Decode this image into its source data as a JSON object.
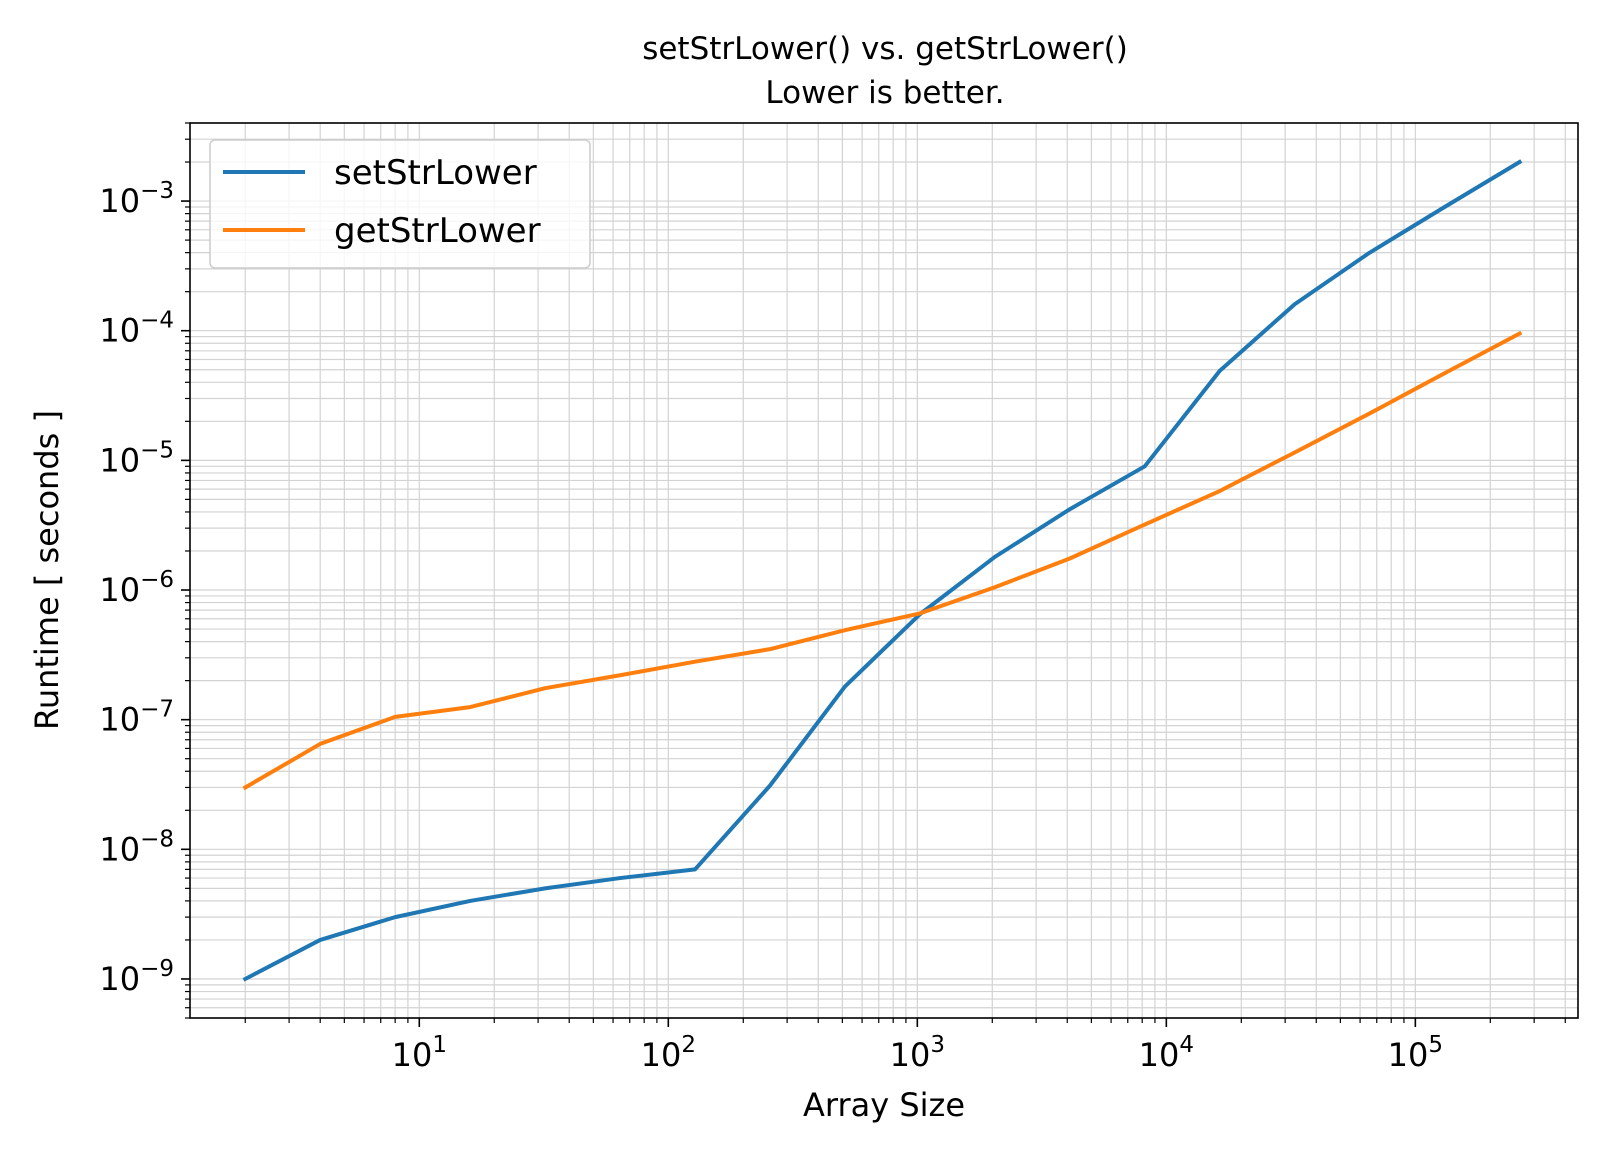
{
  "chart_data": {
    "type": "line",
    "title": "setStrLower() vs. getStrLower()",
    "subtitle": "Lower is better.",
    "xlabel": "Array Size",
    "ylabel": "Runtime [ seconds ]",
    "x_scale": "log",
    "y_scale": "log",
    "xlim": [
      1.2,
      450000
    ],
    "ylim": [
      5e-10,
      0.004
    ],
    "grid": true,
    "legend_position": "top-left",
    "x_ticks": [
      {
        "value": 10,
        "base": "10",
        "exp": "1"
      },
      {
        "value": 100,
        "base": "10",
        "exp": "2"
      },
      {
        "value": 1000,
        "base": "10",
        "exp": "3"
      },
      {
        "value": 10000,
        "base": "10",
        "exp": "4"
      },
      {
        "value": 100000,
        "base": "10",
        "exp": "5"
      }
    ],
    "y_ticks": [
      {
        "value": 1e-09,
        "base": "10",
        "exp": "−9"
      },
      {
        "value": 1e-08,
        "base": "10",
        "exp": "−8"
      },
      {
        "value": 1e-07,
        "base": "10",
        "exp": "−7"
      },
      {
        "value": 1e-06,
        "base": "10",
        "exp": "−6"
      },
      {
        "value": 1e-05,
        "base": "10",
        "exp": "−5"
      },
      {
        "value": 0.0001,
        "base": "10",
        "exp": "−4"
      },
      {
        "value": 0.001,
        "base": "10",
        "exp": "−3"
      }
    ],
    "x": [
      2,
      4,
      8,
      16,
      32,
      64,
      128,
      256,
      512,
      1024,
      2048,
      4096,
      8192,
      16384,
      32768,
      65536,
      131072,
      262144
    ],
    "series": [
      {
        "name": "setStrLower",
        "color": "#1f77b4",
        "values": [
          1e-09,
          2e-09,
          3e-09,
          4e-09,
          5e-09,
          6e-09,
          7e-09,
          3.1e-08,
          1.8e-07,
          6.5e-07,
          1.8e-06,
          4.2e-06,
          9e-06,
          4.9e-05,
          0.00016,
          0.0004,
          0.0009,
          0.002
        ]
      },
      {
        "name": "getStrLower",
        "color": "#ff7f0e",
        "values": [
          3e-08,
          6.5e-08,
          1.05e-07,
          1.25e-07,
          1.75e-07,
          2.2e-07,
          2.8e-07,
          3.5e-07,
          4.9e-07,
          6.6e-07,
          1.05e-06,
          1.75e-06,
          3.2e-06,
          5.8e-06,
          1.15e-05,
          2.3e-05,
          4.7e-05,
          9.5e-05
        ]
      }
    ]
  }
}
